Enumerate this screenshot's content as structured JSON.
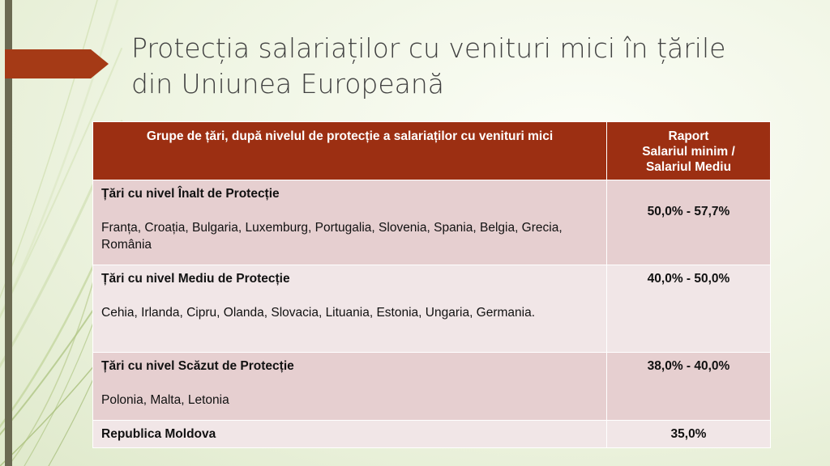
{
  "slide": {
    "title_line1": "Protecția salariaților cu venituri mici în țările",
    "title_line2": "din Uniunea Europeană"
  },
  "table": {
    "header_group": "Grupe de țări, după nivelul de protecție a salariaților cu venituri mici",
    "header_ratio_line1": "Raport",
    "header_ratio_line2": "Salariul minim /",
    "header_ratio_line3": "Salariul Mediu",
    "rows": [
      {
        "group": "Țări cu nivel Înalt de Protecție",
        "countries": "Franța, Croația, Bulgaria, Luxemburg, Portugalia, Slovenia, Spania, Belgia, Grecia, România",
        "ratio": "50,0% - 57,7%"
      },
      {
        "group": "Țări cu nivel Mediu de Protecție",
        "countries": "Cehia, Irlanda, Cipru, Olanda, Slovacia, Lituania, Estonia, Ungaria, Germania.",
        "ratio": "40,0% - 50,0%"
      },
      {
        "group": "Țări cu nivel Scăzut de Protecție",
        "countries": "Polonia, Malta, Letonia",
        "ratio": "38,0% - 40,0%"
      },
      {
        "group": "Republica Moldova",
        "ratio": "35,0%"
      }
    ]
  },
  "colors": {
    "header_bg": "#9c2f12",
    "row_dark": "#e6cfd0",
    "row_light": "#f1e6e7",
    "accent_arrow": "#a53a16",
    "bar": "#6b6a52"
  }
}
